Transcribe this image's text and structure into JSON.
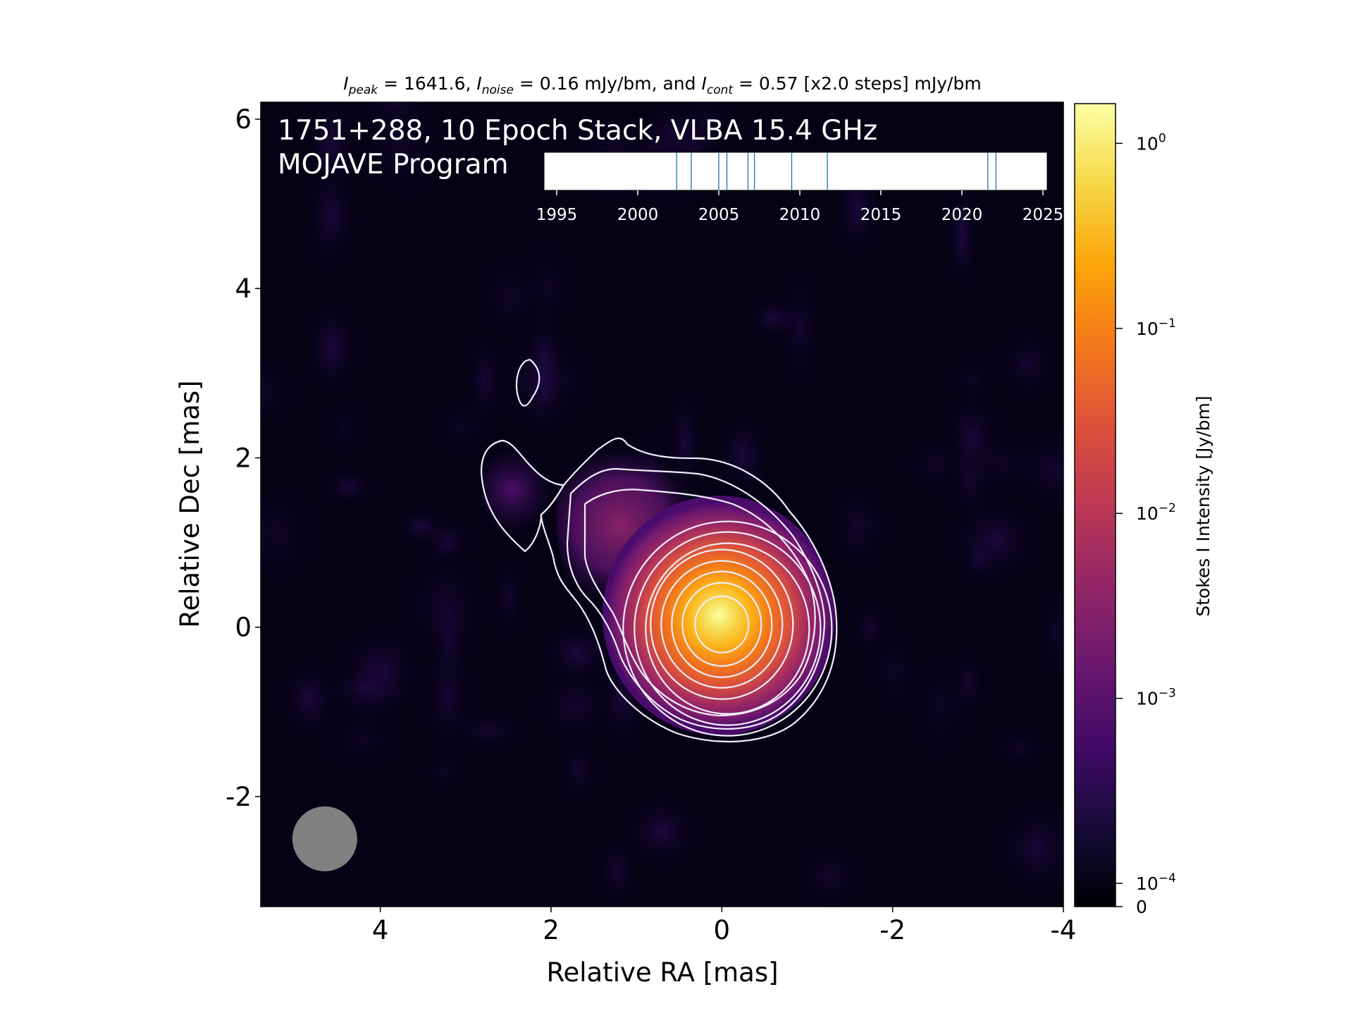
{
  "chart_data": {
    "type": "heatmap",
    "title_parts": {
      "i_peak_sym": "I",
      "i_peak_sub": "peak",
      "i_peak_rest": " = 1641.6, ",
      "i_noise_sym": "I",
      "i_noise_sub": "noise",
      "i_noise_rest": " = 0.16 mJy/bm, and ",
      "i_cont_sym": "I",
      "i_cont_sub": "cont",
      "i_cont_rest": " = 0.57 [x2.0 steps] mJy/bm"
    },
    "annotation": [
      "1751+288, 10 Epoch Stack, VLBA 15.4 GHz",
      "MOJAVE Program"
    ],
    "xlabel": "Relative RA [mas]",
    "ylabel": "Relative Dec [mas]",
    "xlim": [
      5.4,
      -4.0
    ],
    "ylim": [
      -3.3,
      6.2
    ],
    "x_ticks": [
      4,
      2,
      0,
      -2,
      -4
    ],
    "y_ticks": [
      -2,
      0,
      2,
      4,
      6
    ],
    "colorbar": {
      "label": "Stokes I Intensity [Jy/bm]",
      "scale": "log",
      "ticks": [
        {
          "base": "10",
          "exp": "0",
          "value": 1
        },
        {
          "base": "10",
          "exp": "−1",
          "value": 0.1
        },
        {
          "base": "10",
          "exp": "−2",
          "value": 0.01
        },
        {
          "base": "10",
          "exp": "−3",
          "value": 0.001
        },
        {
          "base": "10",
          "exp": "−4",
          "value": 0.0001
        }
      ],
      "zero_label": "0",
      "colormap": "inferno",
      "range": [
        0.0001,
        1.64
      ]
    },
    "epoch_timeline": {
      "tick_labels": [
        "1995",
        "2000",
        "2005",
        "2010",
        "2015",
        "2020",
        "2025"
      ],
      "tick_years": [
        1995,
        2000,
        2005,
        2010,
        2015,
        2020,
        2025
      ],
      "epochs": [
        2002.4,
        2003.3,
        2005.0,
        2005.5,
        2006.8,
        2007.2,
        2009.5,
        2011.7,
        2021.6,
        2022.1
      ],
      "epoch_color": "#1f77b4"
    },
    "peak_mjy_per_beam": 1641.6,
    "noise_mjy_per_beam": 0.16,
    "lowest_contour_mjy_per_beam": 0.57,
    "contour_step": 2.0,
    "core": {
      "ra": 0.0,
      "dec": 0.0
    },
    "beam": {
      "ra": 4.65,
      "dec": -2.5,
      "shape": "circle"
    },
    "contour_color": "#f2eefa",
    "beam_color": "#808080"
  }
}
